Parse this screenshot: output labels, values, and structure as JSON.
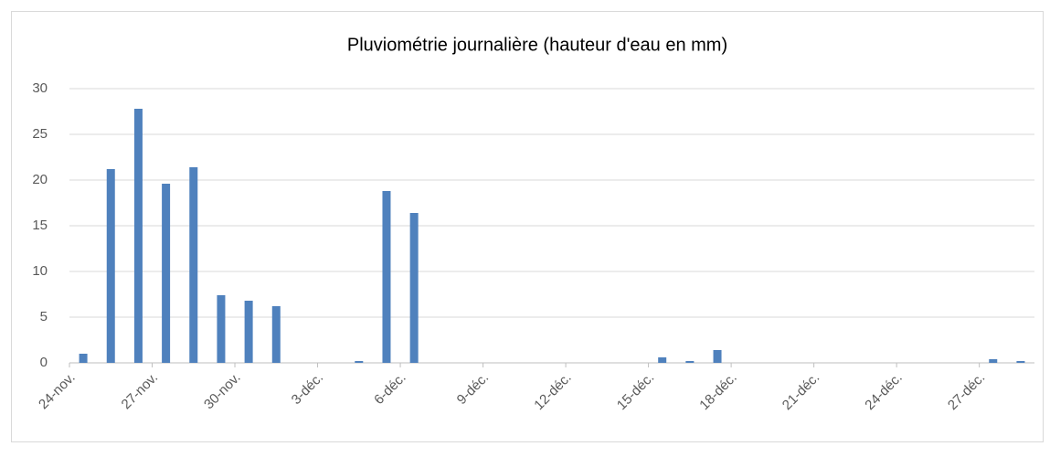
{
  "chart_data": {
    "type": "bar",
    "title": "Pluviométrie journalière (hauteur d'eau en mm)",
    "categories": [
      "24-nov.",
      null,
      null,
      "27-nov.",
      null,
      null,
      "30-nov.",
      null,
      null,
      "3-déc.",
      null,
      null,
      "6-déc.",
      null,
      null,
      "9-déc.",
      null,
      null,
      "12-déc.",
      null,
      null,
      "15-déc.",
      null,
      null,
      "18-déc.",
      null,
      null,
      "21-déc.",
      null,
      null,
      "24-déc.",
      null,
      null,
      "27-déc.",
      null
    ],
    "values": [
      1,
      21.2,
      27.8,
      19.6,
      21.4,
      7.4,
      6.8,
      6.2,
      0,
      0,
      0.2,
      18.8,
      16.4,
      0,
      0,
      0,
      0,
      0,
      0,
      0,
      0,
      0.6,
      0.2,
      1.4,
      0,
      0,
      0,
      0,
      0,
      0,
      0,
      0,
      0,
      0.4,
      0.2
    ],
    "color": "#4f81bd",
    "ylim": [
      0,
      30
    ],
    "yticks": [
      0,
      5,
      10,
      15,
      20,
      25,
      30
    ],
    "grid": true
  }
}
